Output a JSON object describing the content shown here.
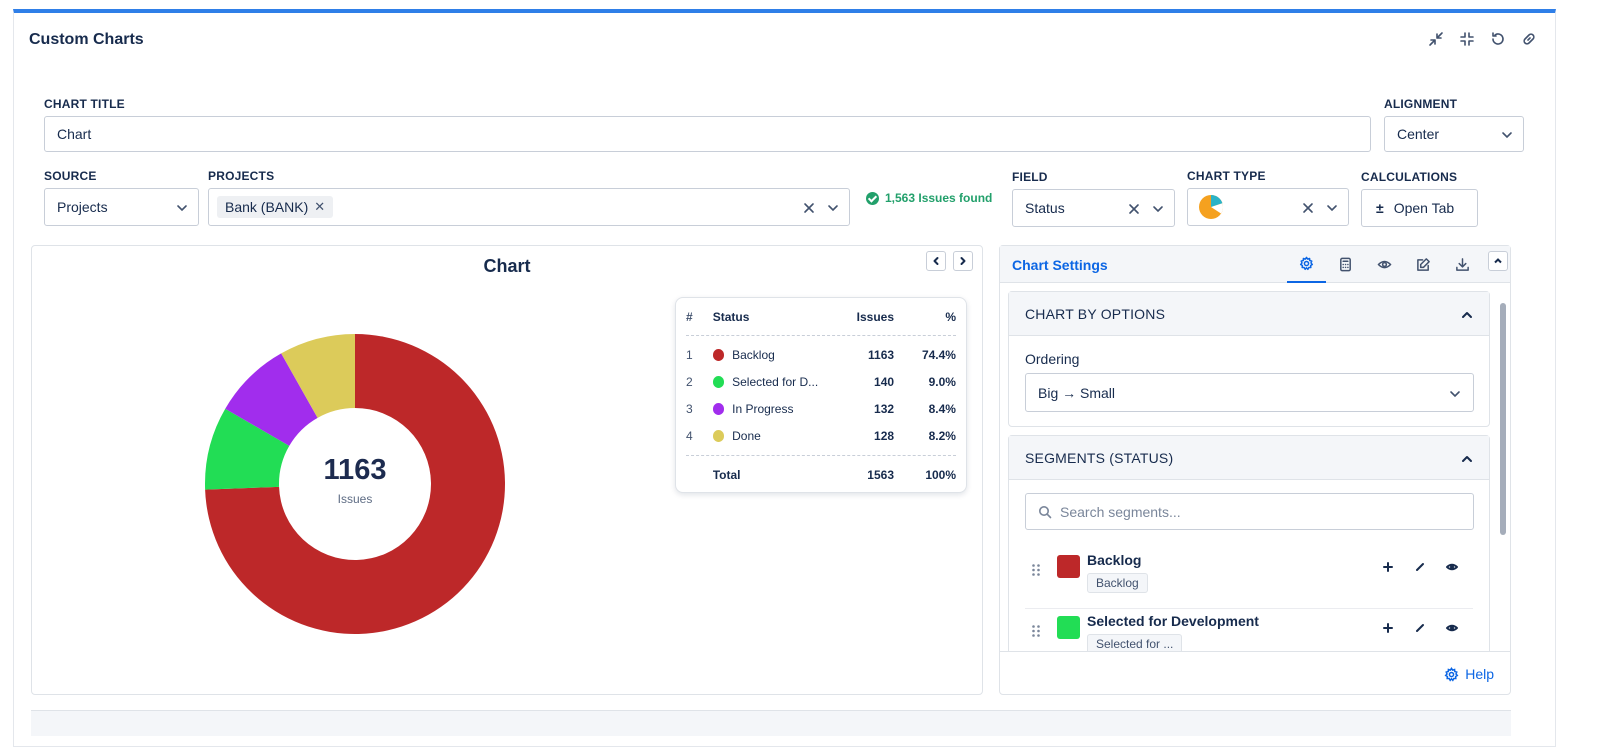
{
  "app": {
    "title": "Custom Charts"
  },
  "form": {
    "chart_title": {
      "label": "CHART TITLE",
      "value": "Chart"
    },
    "alignment": {
      "label": "ALIGNMENT",
      "value": "Center"
    },
    "source": {
      "label": "SOURCE",
      "value": "Projects"
    },
    "projects": {
      "label": "PROJECTS",
      "tags": [
        "Bank (BANK)"
      ]
    },
    "issues_found": "1,563 Issues found",
    "field": {
      "label": "FIELD",
      "value": "Status"
    },
    "chart_type": {
      "label": "CHART TYPE"
    },
    "calculations": {
      "label": "CALCULATIONS",
      "button": "Open Tab"
    }
  },
  "chart": {
    "title": "Chart",
    "center_value": "1163",
    "center_label": "Issues",
    "legend": {
      "headers": {
        "num": "#",
        "status": "Status",
        "issues": "Issues",
        "pct": "%"
      },
      "rows": [
        {
          "num": "1",
          "name": "Backlog",
          "issues": "1163",
          "pct": "74.4%"
        },
        {
          "num": "2",
          "name": "Selected for D...",
          "issues": "140",
          "pct": "9.0%"
        },
        {
          "num": "3",
          "name": "In Progress",
          "issues": "132",
          "pct": "8.4%"
        },
        {
          "num": "4",
          "name": "Done",
          "issues": "128",
          "pct": "8.2%"
        }
      ],
      "total": {
        "label": "Total",
        "issues": "1563",
        "pct": "100%"
      }
    }
  },
  "chart_data": {
    "type": "pie",
    "title": "Chart",
    "categories": [
      "Backlog",
      "Selected for Development",
      "In Progress",
      "Done"
    ],
    "values": [
      1163,
      140,
      132,
      128
    ],
    "colors": [
      "#bd2829",
      "#22dd55",
      "#a12ded",
      "#dccb5a"
    ],
    "donut": true,
    "center_text": "1163",
    "center_subtext": "Issues",
    "ordering": "Big → Small"
  },
  "settings": {
    "title": "Chart Settings",
    "chart_by": {
      "title": "CHART BY OPTIONS",
      "ordering_label": "Ordering",
      "ordering_value": "Big → Small"
    },
    "segments": {
      "title": "SEGMENTS (STATUS)",
      "search_placeholder": "Search segments...",
      "items": [
        {
          "name": "Backlog",
          "tag": "Backlog",
          "color": "#bd2829"
        },
        {
          "name": "Selected for Development",
          "tag": "Selected for ...",
          "color": "#22dd55"
        }
      ]
    },
    "help": "Help"
  }
}
